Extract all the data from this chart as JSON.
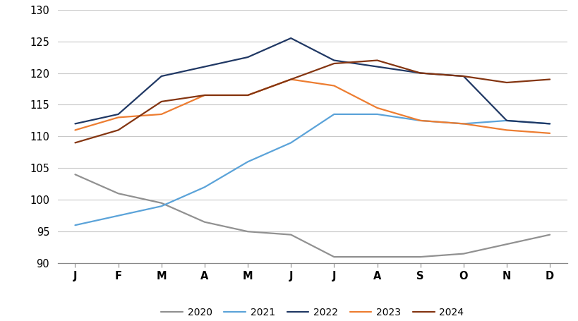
{
  "months": [
    "J",
    "F",
    "M",
    "A",
    "M",
    "J",
    "J",
    "A",
    "S",
    "O",
    "N",
    "D"
  ],
  "series": {
    "2020": [
      104,
      101,
      99.5,
      96.5,
      95,
      94.5,
      91,
      91,
      91,
      91.5,
      93,
      94.5
    ],
    "2021": [
      96,
      97.5,
      99,
      102,
      106,
      109,
      113.5,
      113.5,
      112.5,
      112,
      112.5,
      112
    ],
    "2022": [
      112,
      113.5,
      119.5,
      121,
      122.5,
      125.5,
      122,
      121,
      120,
      119.5,
      112.5,
      112
    ],
    "2023": [
      111,
      113,
      113.5,
      116.5,
      116.5,
      119,
      118,
      114.5,
      112.5,
      112,
      111,
      110.5
    ],
    "2024": [
      109,
      111,
      115.5,
      116.5,
      116.5,
      119,
      121.5,
      122,
      120,
      119.5,
      118.5,
      119
    ]
  },
  "colors": {
    "2020": "#919191",
    "2021": "#5BA3D9",
    "2022": "#203864",
    "2023": "#ED7D31",
    "2024": "#843511"
  },
  "ylim": [
    90,
    130
  ],
  "yticks": [
    90,
    95,
    100,
    105,
    110,
    115,
    120,
    125,
    130
  ],
  "background_color": "#ffffff",
  "grid_color": "#c8c8c8"
}
